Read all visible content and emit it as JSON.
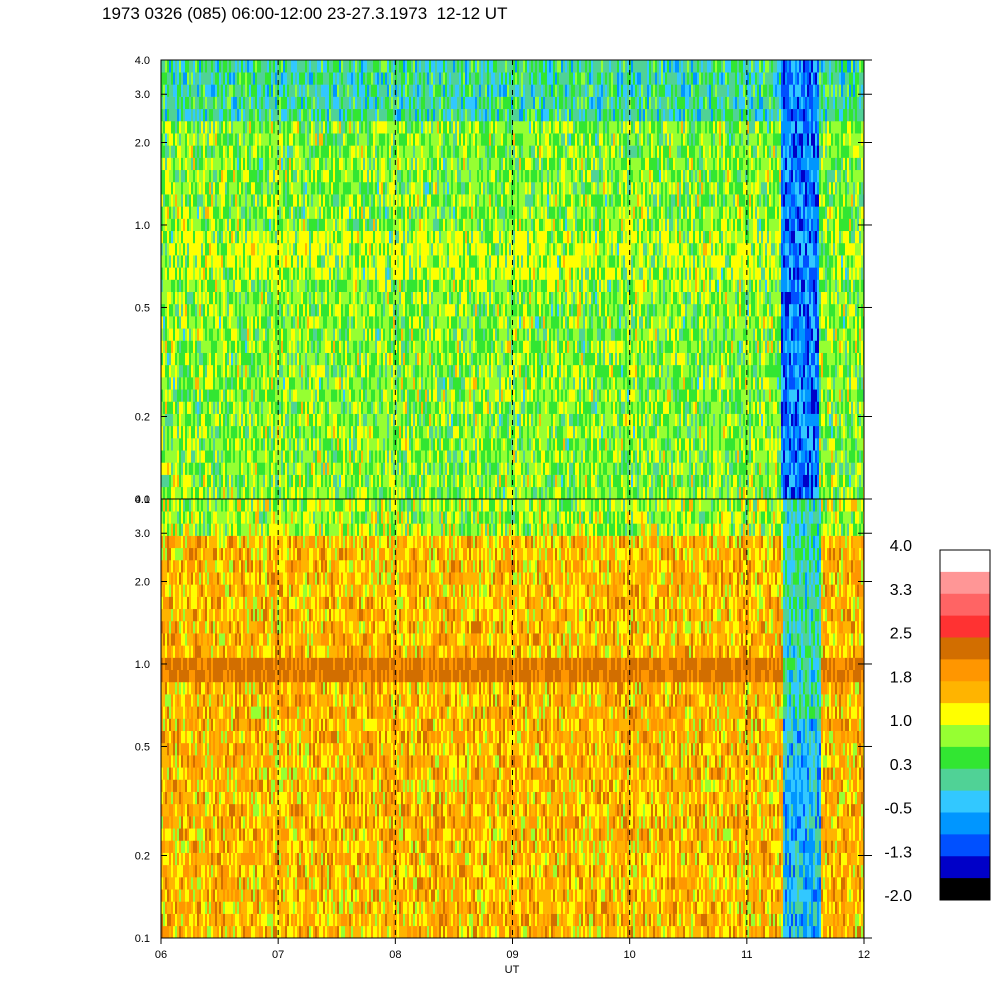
{
  "title": "1973 0326 (085) 06:00-12:00 23-27.3.1973  12-12 UT",
  "chart_data": {
    "type": "heatmap",
    "title": "1973 0326 (085) 06:00-12:00 23-27.3.1973  12-12 UT",
    "xlabel": "UT",
    "ylabel": "",
    "x_range": [
      "06",
      "12"
    ],
    "x_ticks": [
      "06",
      "07",
      "08",
      "09",
      "10",
      "11",
      "12"
    ],
    "y_scale": "log",
    "y_range": [
      0.1,
      4.0
    ],
    "y_ticks": [
      {
        "value": 0.1,
        "label": "0.1"
      },
      {
        "value": 0.2,
        "label": "0.2"
      },
      {
        "value": 0.5,
        "label": "0.5"
      },
      {
        "value": 1.0,
        "label": "1.0"
      },
      {
        "value": 2.0,
        "label": "2.0"
      },
      {
        "value": 3.0,
        "label": "3.0"
      },
      {
        "value": 4.0,
        "label": "4.0"
      }
    ],
    "dashed_verticals_at_hours": [
      7,
      8,
      9,
      10,
      11
    ],
    "panels": [
      {
        "name": "upper",
        "dominant_levels": [
          0.3,
          0.7,
          1.0
        ],
        "notes": "green/cyan background, yellow patches near 1.0, blue dropout 11:20-11:35"
      },
      {
        "name": "lower",
        "dominant_levels": [
          1.2,
          1.6,
          2.0
        ],
        "notes": "orange/yellow background, dark orange band near 0.8-0.9, blue/green dropout 11:20-11:38"
      }
    ],
    "colorbar": {
      "labels": [
        "4.0",
        "3.3",
        "2.5",
        "1.8",
        "1.0",
        "0.3",
        "-0.5",
        "-1.3",
        "-2.0"
      ],
      "colors": [
        "#ffffff",
        "#ff9696",
        "#ff6464",
        "#ff3232",
        "#d26e00",
        "#ff9600",
        "#ffb400",
        "#ffff00",
        "#96ff32",
        "#32e632",
        "#50d296",
        "#32c8ff",
        "#0096ff",
        "#0050ff",
        "#0000c8",
        "#000000"
      ],
      "range": [
        -2.0,
        4.0
      ]
    }
  }
}
